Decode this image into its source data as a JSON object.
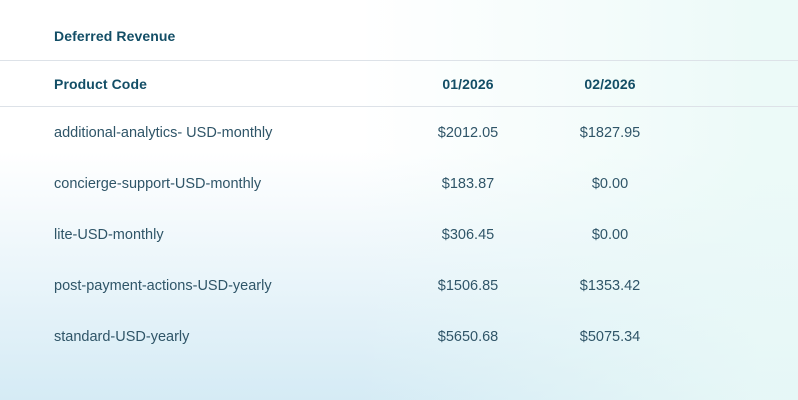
{
  "page": {
    "title": "Deferred Revenue"
  },
  "table": {
    "columns": [
      "Product Code",
      "01/2026",
      "02/2026"
    ],
    "rows": [
      {
        "product": "additional-analytics- USD-monthly",
        "jan": "$2012.05",
        "feb": "$1827.95"
      },
      {
        "product": "concierge-support-USD-monthly",
        "jan": "$183.87",
        "feb": "$0.00"
      },
      {
        "product": "lite-USD-monthly",
        "jan": "$306.45",
        "feb": "$0.00"
      },
      {
        "product": "post-payment-actions-USD-yearly",
        "jan": "$1506.85",
        "feb": "$1353.42"
      },
      {
        "product": "standard-USD-yearly",
        "jan": "$5650.68",
        "feb": "$5075.34"
      }
    ]
  },
  "colors": {
    "heading_text": "#134e66",
    "body_text": "#2f5568",
    "divider": "#dde2e8",
    "background_top": "#ffffff",
    "background_bottom_left": "#d5ebf5",
    "background_bottom_right": "#e9f8f7"
  }
}
